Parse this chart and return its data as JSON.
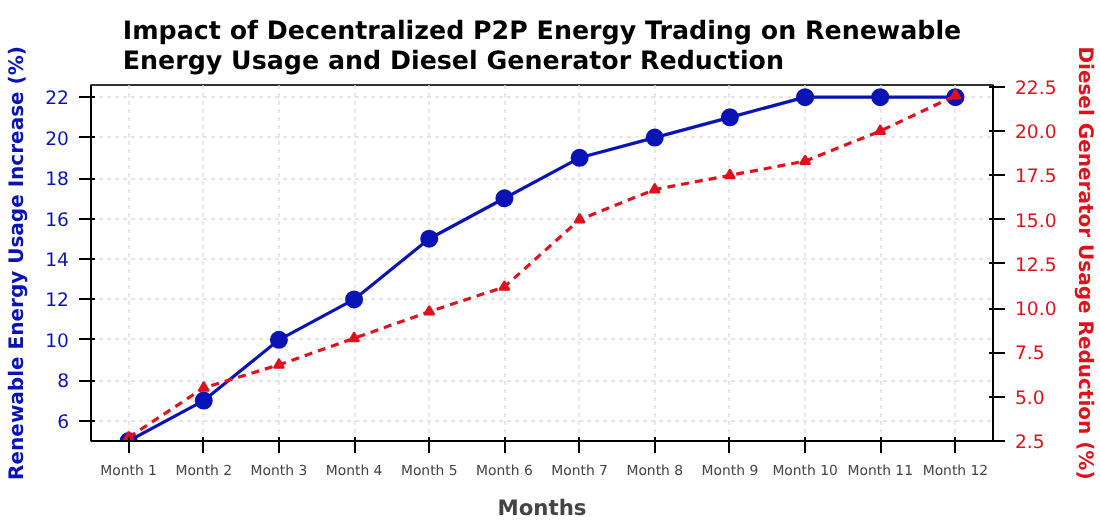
{
  "chart_data": {
    "type": "line",
    "title": "Impact of Decentralized P2P Energy Trading on Renewable\nEnergy Usage and Diesel Generator Reduction",
    "xlabel": "Months",
    "ylabel": "Renewable Energy Usage Increase (%)",
    "y2label": "Diesel Generator Usage Reduction (%)",
    "categories": [
      "Month 1",
      "Month 2",
      "Month 3",
      "Month 4",
      "Month 5",
      "Month 6",
      "Month 7",
      "Month 8",
      "Month 9",
      "Month 10",
      "Month 11",
      "Month 12"
    ],
    "series": [
      {
        "color": "#0a14b4",
        "marker": "circle",
        "line_style": "solid",
        "values": [
          5,
          7,
          10,
          12,
          15,
          17,
          19,
          20,
          21,
          22,
          22,
          22
        ]
      },
      {
        "color": "#e0101c",
        "marker": "triangle",
        "line_style": "dashed",
        "axis": "y2",
        "values": [
          2.7,
          5.5,
          6.8,
          8.3,
          9.8,
          11.2,
          15.0,
          16.7,
          17.5,
          18.3,
          20.0,
          22.0
        ]
      }
    ],
    "ylim": [
      5,
      22.6
    ],
    "yticks": [
      6,
      8,
      10,
      12,
      14,
      16,
      18,
      20,
      22
    ],
    "y2lim": [
      2.5,
      22.6
    ],
    "y2ticks": [
      {
        "value": 2.5,
        "label": "2.5"
      },
      {
        "value": 5,
        "label": "5.0"
      },
      {
        "value": 7.5,
        "label": "7.5"
      },
      {
        "value": 10,
        "label": "10.0"
      },
      {
        "value": 12.5,
        "label": "12.5"
      },
      {
        "value": 15,
        "label": "15.0"
      },
      {
        "value": 17.5,
        "label": "17.5"
      },
      {
        "value": 20,
        "label": "20.0"
      },
      {
        "value": 22.5,
        "label": "22.5"
      }
    ],
    "grid": true
  }
}
